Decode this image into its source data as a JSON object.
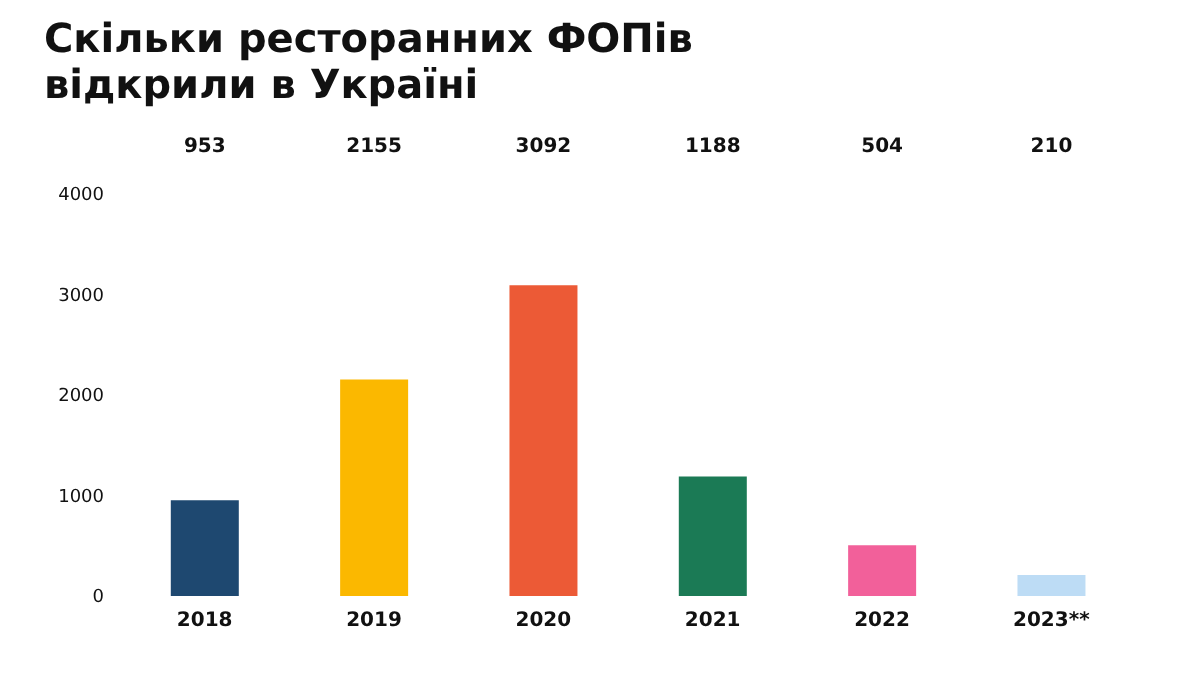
{
  "chart_data": {
    "type": "bar",
    "title": "Скільки ресторанних ФОПів відкрили в Україні",
    "categories": [
      "2018",
      "2019",
      "2020",
      "2021",
      "2022",
      "2023**"
    ],
    "values": [
      953,
      2155,
      3092,
      1188,
      504,
      210
    ],
    "colors": [
      "#1e4870",
      "#fbb800",
      "#ec5a36",
      "#1b7a55",
      "#f2609a",
      "#bddcf5"
    ],
    "ylim": [
      0,
      4000
    ],
    "yticks": [
      0,
      1000,
      2000,
      3000,
      4000
    ],
    "data_labels": true
  }
}
